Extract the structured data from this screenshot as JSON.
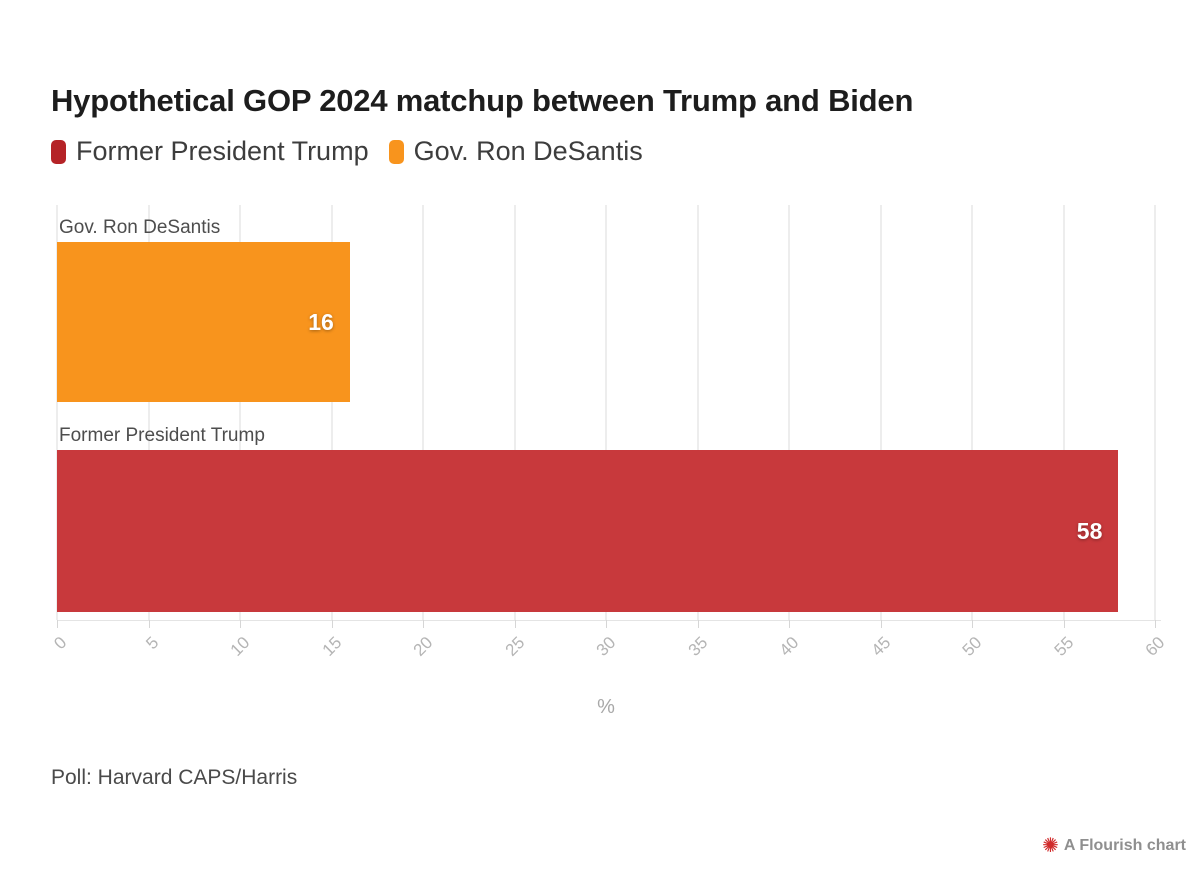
{
  "chart_data": {
    "type": "bar",
    "orientation": "horizontal",
    "title": "Hypothetical GOP 2024 matchup between Trump and Biden",
    "categories": [
      "Gov. Ron DeSantis",
      "Former President Trump"
    ],
    "values": [
      16,
      58
    ],
    "colors": [
      "#f8941d",
      "#c8393c"
    ],
    "xlabel": "%",
    "xlim": [
      0,
      60
    ],
    "xticks": [
      0,
      5,
      10,
      15,
      20,
      25,
      30,
      35,
      40,
      45,
      50,
      55,
      60
    ],
    "grid": true,
    "legend_position": "top"
  },
  "legend": {
    "items": [
      {
        "label": "Former President Trump",
        "color": "#b52327"
      },
      {
        "label": "Gov. Ron DeSantis",
        "color": "#f8941d"
      }
    ]
  },
  "footer": {
    "source": "Poll: Harvard CAPS/Harris"
  },
  "credit": {
    "label": "A Flourish chart",
    "icon_glyph": "✺",
    "icon_color": "#d02b2b"
  }
}
